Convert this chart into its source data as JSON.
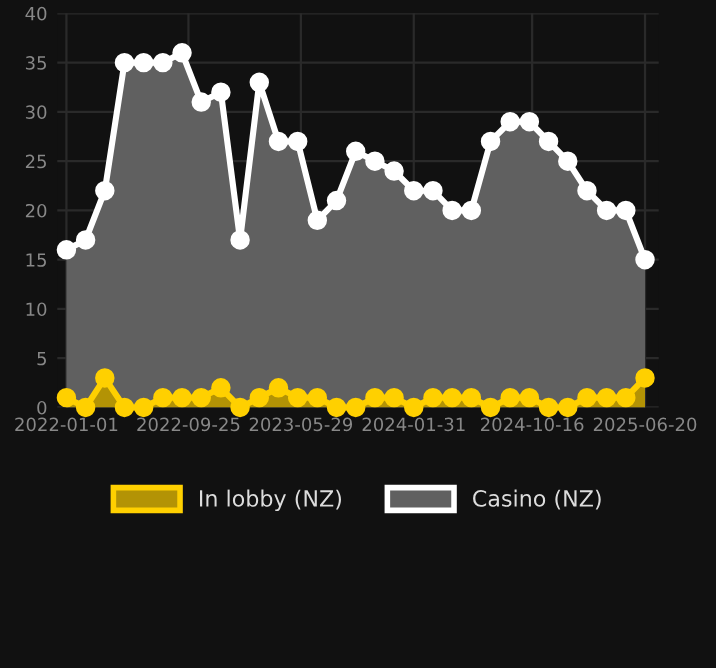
{
  "chart_data": {
    "type": "area",
    "x": [
      "2022-01-01",
      "2022-02-12",
      "2022-03-26",
      "2022-05-08",
      "2022-06-19",
      "2022-07-31",
      "2022-09-11",
      "2022-10-23",
      "2022-12-05",
      "2023-01-16",
      "2023-02-27",
      "2023-04-10",
      "2023-05-22",
      "2023-07-04",
      "2023-08-15",
      "2023-09-26",
      "2023-11-07",
      "2023-12-19",
      "2024-01-31",
      "2024-03-13",
      "2024-04-24",
      "2024-06-05",
      "2024-07-17",
      "2024-08-29",
      "2024-10-10",
      "2024-11-21",
      "2025-01-02",
      "2025-02-13",
      "2025-03-28",
      "2025-05-09",
      "2025-06-20"
    ],
    "series": [
      {
        "name": "In lobby (NZ)",
        "color": "#ffd000",
        "values": [
          1,
          0,
          3,
          0,
          0,
          1,
          1,
          1,
          2,
          0,
          1,
          2,
          1,
          1,
          0,
          0,
          1,
          1,
          0,
          1,
          1,
          1,
          0,
          1,
          1,
          0,
          0,
          1,
          1,
          1,
          3
        ]
      },
      {
        "name": "Casino (NZ)",
        "color": "#ffffff",
        "values": [
          16,
          17,
          22,
          35,
          35,
          35,
          36,
          31,
          32,
          17,
          33,
          27,
          27,
          19,
          21,
          26,
          25,
          24,
          22,
          22,
          20,
          20,
          27,
          29,
          29,
          27,
          25,
          22,
          20,
          20,
          15
        ]
      }
    ],
    "xlim": [
      "2021-12-12",
      "2025-07-20"
    ],
    "xticks": [
      "2022-01-01",
      "2022-09-25",
      "2023-05-29",
      "2024-01-31",
      "2024-10-16",
      "2025-06-20"
    ],
    "ylim": [
      0,
      40
    ],
    "yticks": [
      0,
      5,
      10,
      15,
      20,
      25,
      30,
      35,
      40
    ],
    "grid": true,
    "legend": "bottom",
    "marker": "circle",
    "line_style": "solid"
  }
}
